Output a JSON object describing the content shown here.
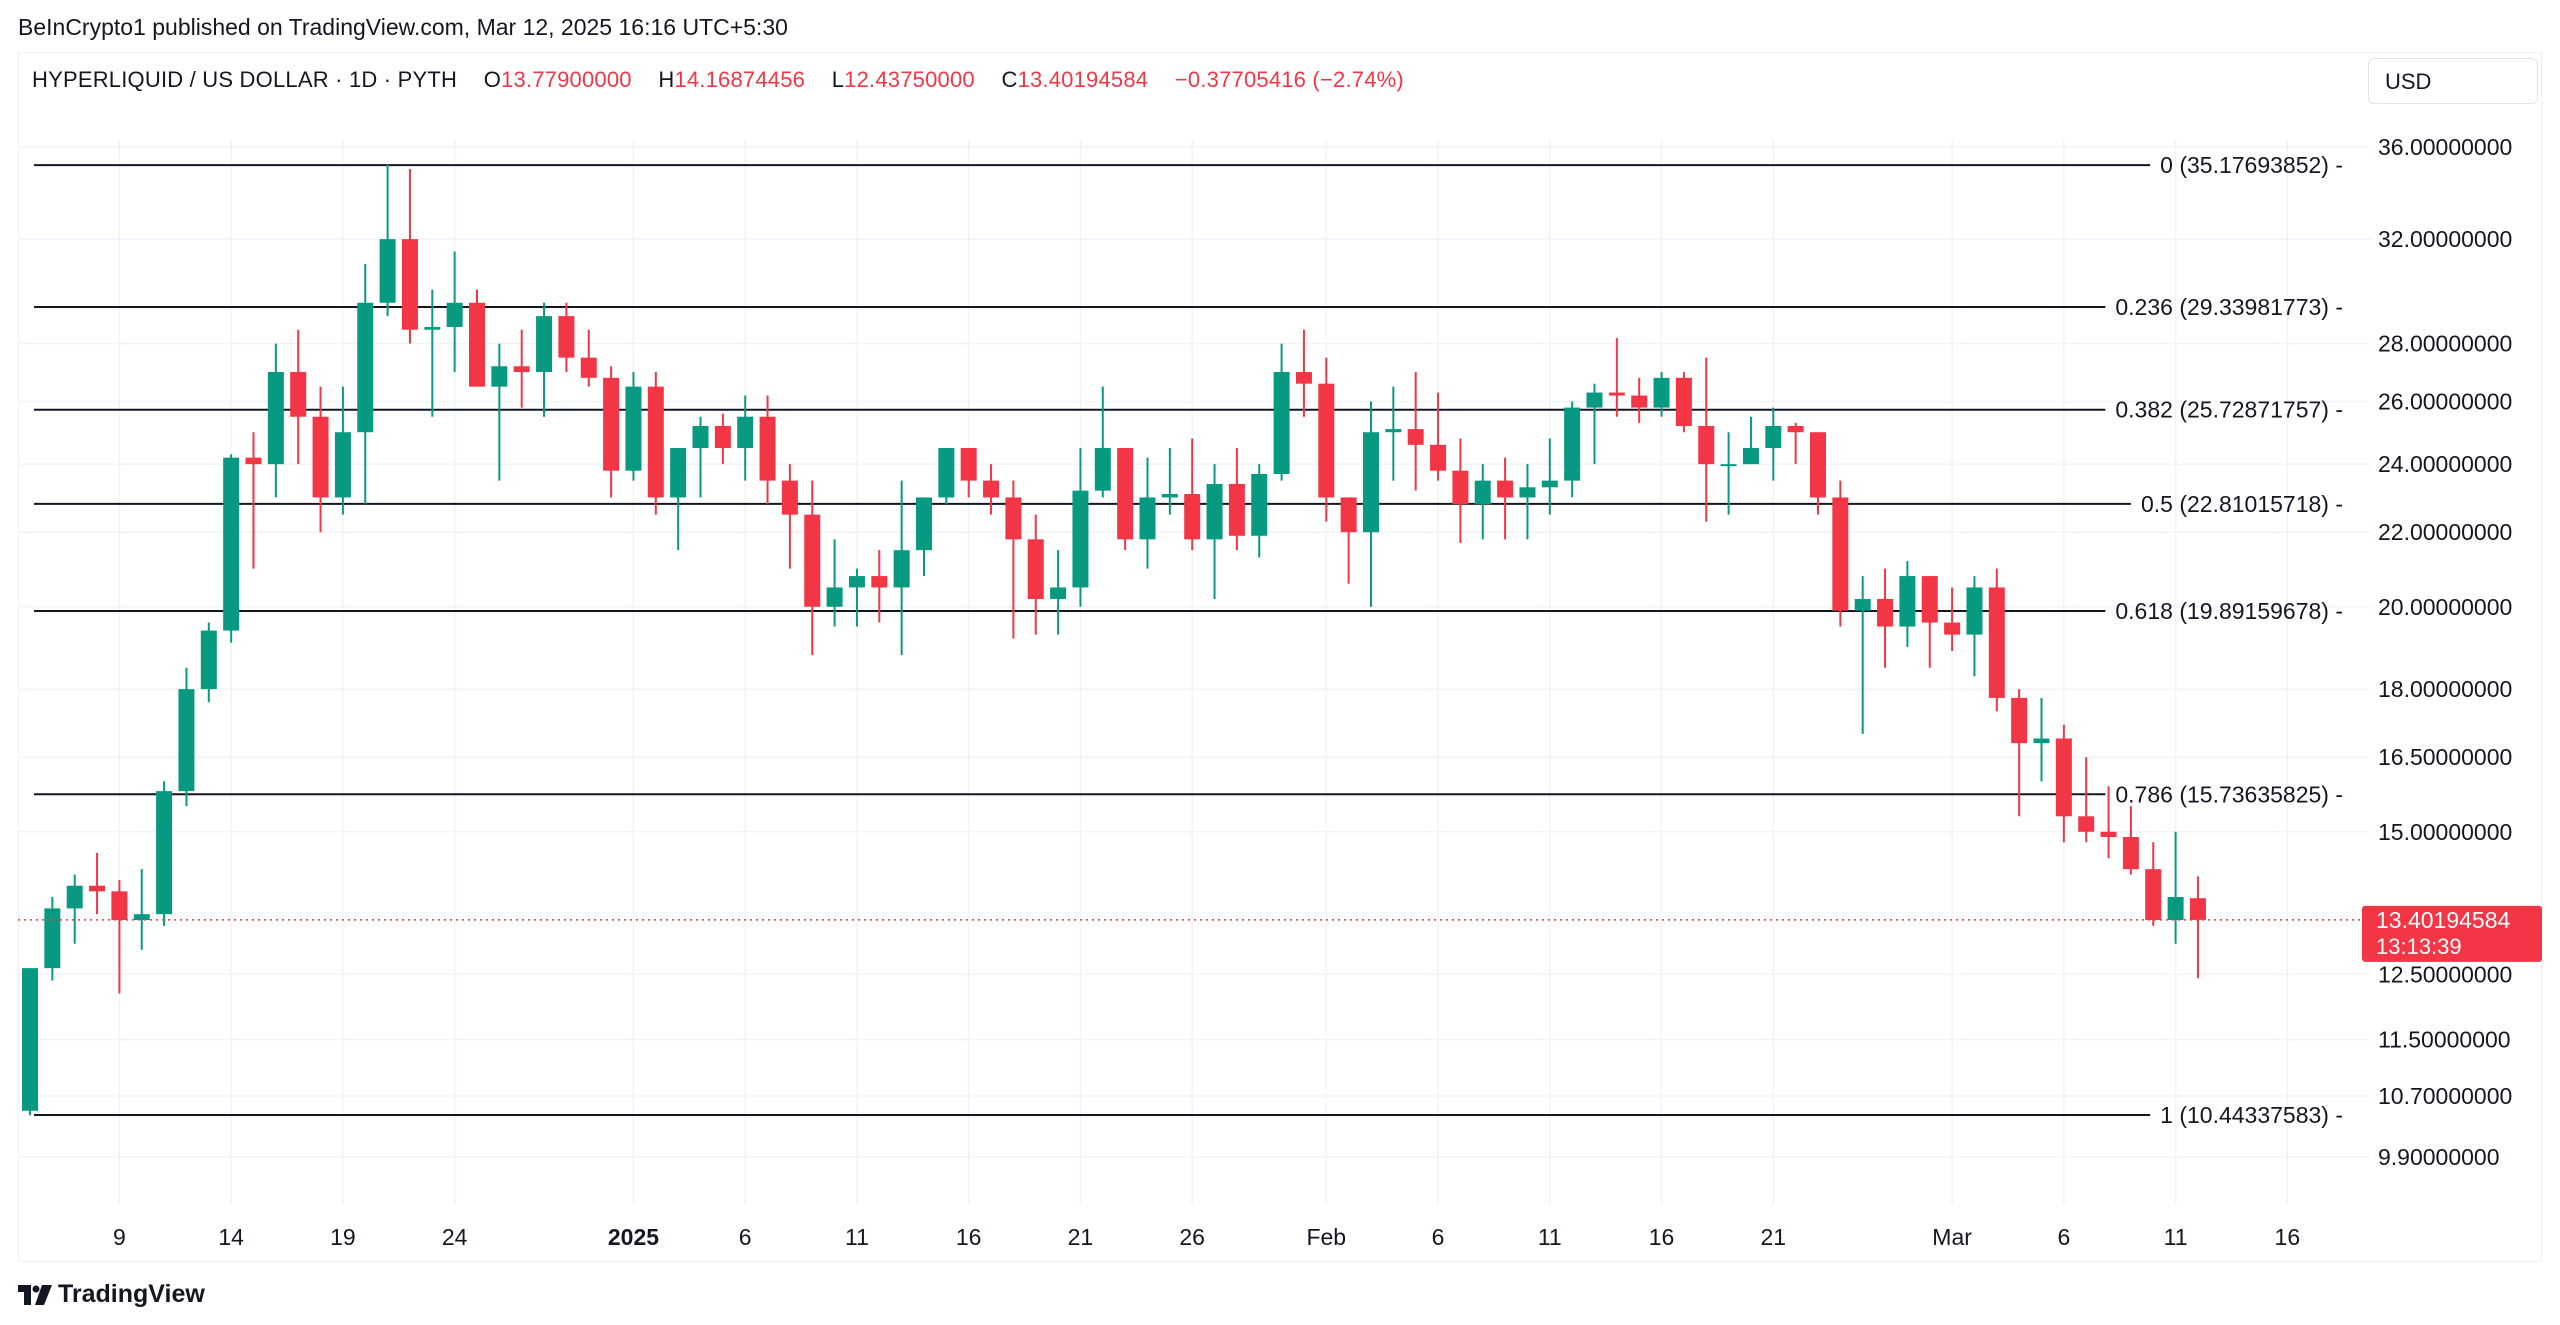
{
  "header": {
    "published": "BeInCrypto1 published on TradingView.com, Mar 12, 2025 16:16 UTC+5:30"
  },
  "legend": {
    "symbol": "HYPERLIQUID / US DOLLAR · 1D · PYTH",
    "o_label": "O",
    "o_value": "13.77900000",
    "h_label": "H",
    "h_value": "14.16874456",
    "l_label": "L",
    "l_value": "12.43750000",
    "c_label": "C",
    "c_value": "13.40194584",
    "change": "−0.37705416 (−2.74%)"
  },
  "currency_label": "USD",
  "footer": {
    "brand": "TradingView"
  },
  "colors": {
    "up": "#089981",
    "down": "#f23645",
    "grid": "#f0f3fa",
    "fib": "#131722",
    "text": "#131722"
  },
  "chart_data": {
    "type": "candlestick",
    "title": "HYPERLIQUID / US DOLLAR · 1D · PYTH",
    "yscale": "log",
    "ylim": [
      9.2,
      36.5
    ],
    "y_ticks": [
      {
        "value": 36,
        "label": "36.00000000"
      },
      {
        "value": 32,
        "label": "32.00000000"
      },
      {
        "value": 28,
        "label": "28.00000000"
      },
      {
        "value": 26,
        "label": "26.00000000"
      },
      {
        "value": 24,
        "label": "24.00000000"
      },
      {
        "value": 22,
        "label": "22.00000000"
      },
      {
        "value": 20,
        "label": "20.00000000"
      },
      {
        "value": 18,
        "label": "18.00000000"
      },
      {
        "value": 16.5,
        "label": "16.50000000"
      },
      {
        "value": 15,
        "label": "15.00000000"
      },
      {
        "value": 12.5,
        "label": "12.50000000"
      },
      {
        "value": 11.5,
        "label": "11.50000000"
      },
      {
        "value": 10.7,
        "label": "10.70000000"
      },
      {
        "value": 9.9,
        "label": "9.90000000"
      }
    ],
    "x_ticks": [
      {
        "index": 4,
        "label": "9",
        "bold": false
      },
      {
        "index": 9,
        "label": "14",
        "bold": false
      },
      {
        "index": 14,
        "label": "19",
        "bold": false
      },
      {
        "index": 19,
        "label": "24",
        "bold": false
      },
      {
        "index": 27,
        "label": "2025",
        "bold": true
      },
      {
        "index": 32,
        "label": "6",
        "bold": false
      },
      {
        "index": 37,
        "label": "11",
        "bold": false
      },
      {
        "index": 42,
        "label": "16",
        "bold": false
      },
      {
        "index": 47,
        "label": "21",
        "bold": false
      },
      {
        "index": 52,
        "label": "26",
        "bold": false
      },
      {
        "index": 58,
        "label": "Feb",
        "bold": false
      },
      {
        "index": 63,
        "label": "6",
        "bold": false
      },
      {
        "index": 68,
        "label": "11",
        "bold": false
      },
      {
        "index": 73,
        "label": "16",
        "bold": false
      },
      {
        "index": 78,
        "label": "21",
        "bold": false
      },
      {
        "index": 86,
        "label": "Mar",
        "bold": false
      },
      {
        "index": 91,
        "label": "6",
        "bold": false
      },
      {
        "index": 96,
        "label": "11",
        "bold": false
      },
      {
        "index": 101,
        "label": "16",
        "bold": false
      }
    ],
    "fib_levels": [
      {
        "ratio": "0",
        "value": 35.17693852,
        "label": "0 (35.17693852)"
      },
      {
        "ratio": "0.236",
        "value": 29.33981773,
        "label": "0.236 (29.33981773)"
      },
      {
        "ratio": "0.382",
        "value": 25.72871757,
        "label": "0.382 (25.72871757)"
      },
      {
        "ratio": "0.5",
        "value": 22.81015718,
        "label": "0.5 (22.81015718)"
      },
      {
        "ratio": "0.618",
        "value": 19.89159678,
        "label": "0.618 (19.89159678)"
      },
      {
        "ratio": "0.786",
        "value": 15.73635825,
        "label": "0.786 (15.73635825)"
      },
      {
        "ratio": "1",
        "value": 10.44337583,
        "label": "1 (10.44337583)"
      }
    ],
    "last_price": {
      "value": 13.40194584,
      "label": "13.40194584",
      "countdown": "13:13:39"
    },
    "first_index": 0,
    "candles": [
      [
        10.5,
        12.6,
        10.44,
        12.6
      ],
      [
        12.6,
        13.8,
        12.4,
        13.6
      ],
      [
        13.6,
        14.2,
        13.0,
        14.0
      ],
      [
        14.0,
        14.6,
        13.5,
        13.9
      ],
      [
        13.9,
        14.1,
        12.2,
        13.4
      ],
      [
        13.4,
        14.3,
        12.9,
        13.5
      ],
      [
        13.5,
        16.0,
        13.3,
        15.8
      ],
      [
        15.8,
        18.5,
        15.5,
        18.0
      ],
      [
        18.0,
        19.6,
        17.7,
        19.4
      ],
      [
        19.4,
        24.3,
        19.1,
        24.2
      ],
      [
        24.2,
        25.0,
        21.0,
        24.0
      ],
      [
        24.0,
        28.0,
        23.0,
        27.0
      ],
      [
        27.0,
        28.5,
        24.0,
        25.5
      ],
      [
        25.5,
        26.5,
        22.0,
        23.0
      ],
      [
        23.0,
        26.5,
        22.5,
        25.0
      ],
      [
        25.0,
        31.0,
        22.8,
        29.5
      ],
      [
        29.5,
        35.2,
        29.0,
        32.0
      ],
      [
        32.0,
        35.0,
        28.0,
        28.5
      ],
      [
        28.5,
        30.0,
        25.5,
        28.6
      ],
      [
        28.6,
        31.5,
        27.0,
        29.5
      ],
      [
        29.5,
        30.0,
        26.5,
        26.5
      ],
      [
        26.5,
        28.0,
        23.5,
        27.2
      ],
      [
        27.2,
        28.5,
        25.8,
        27.0
      ],
      [
        27.0,
        29.5,
        25.5,
        29.0
      ],
      [
        29.0,
        29.5,
        27.0,
        27.5
      ],
      [
        27.5,
        28.5,
        26.5,
        26.8
      ],
      [
        26.8,
        27.2,
        23.0,
        23.8
      ],
      [
        23.8,
        27.0,
        23.5,
        26.5
      ],
      [
        26.5,
        27.0,
        22.5,
        23.0
      ],
      [
        23.0,
        24.5,
        21.5,
        24.5
      ],
      [
        24.5,
        25.5,
        23.0,
        25.2
      ],
      [
        25.2,
        25.6,
        24.0,
        24.5
      ],
      [
        24.5,
        26.2,
        23.5,
        25.5
      ],
      [
        25.5,
        26.2,
        22.8,
        23.5
      ],
      [
        23.5,
        24.0,
        21.0,
        22.5
      ],
      [
        22.5,
        23.5,
        18.8,
        20.0
      ],
      [
        20.0,
        21.8,
        19.5,
        20.5
      ],
      [
        20.5,
        21.0,
        19.5,
        20.8
      ],
      [
        20.8,
        21.5,
        19.6,
        20.5
      ],
      [
        20.5,
        23.5,
        18.8,
        21.5
      ],
      [
        21.5,
        22.8,
        20.8,
        23.0
      ],
      [
        23.0,
        24.5,
        22.8,
        24.5
      ],
      [
        24.5,
        24.5,
        23.0,
        23.5
      ],
      [
        23.5,
        24.0,
        22.5,
        23.0
      ],
      [
        23.0,
        23.5,
        19.2,
        21.8
      ],
      [
        21.8,
        22.5,
        19.3,
        20.2
      ],
      [
        20.2,
        21.5,
        19.3,
        20.5
      ],
      [
        20.5,
        24.5,
        20.0,
        23.2
      ],
      [
        23.2,
        26.5,
        23.0,
        24.5
      ],
      [
        24.5,
        24.5,
        21.5,
        21.8
      ],
      [
        21.8,
        24.2,
        21.0,
        23.0
      ],
      [
        23.0,
        24.5,
        22.5,
        23.1
      ],
      [
        23.1,
        24.8,
        21.5,
        21.8
      ],
      [
        21.8,
        24.0,
        20.2,
        23.4
      ],
      [
        23.4,
        24.5,
        21.5,
        21.9
      ],
      [
        21.9,
        24.0,
        21.3,
        23.7
      ],
      [
        23.7,
        28.0,
        23.5,
        27.0
      ],
      [
        27.0,
        28.5,
        25.5,
        26.6
      ],
      [
        26.6,
        27.5,
        22.3,
        23.0
      ],
      [
        23.0,
        23.0,
        20.6,
        22.0
      ],
      [
        22.0,
        26.0,
        20.0,
        25.0
      ],
      [
        25.0,
        26.5,
        23.5,
        25.1
      ],
      [
        25.1,
        27.0,
        23.2,
        24.6
      ],
      [
        24.6,
        26.3,
        23.5,
        23.8
      ],
      [
        23.8,
        24.8,
        21.7,
        22.8
      ],
      [
        22.8,
        24.0,
        21.8,
        23.5
      ],
      [
        23.5,
        24.2,
        21.8,
        23.0
      ],
      [
        23.0,
        24.0,
        21.8,
        23.3
      ],
      [
        23.3,
        24.8,
        22.5,
        23.5
      ],
      [
        23.5,
        26.0,
        23.0,
        25.8
      ],
      [
        25.8,
        26.6,
        24.0,
        26.3
      ],
      [
        26.3,
        28.2,
        25.5,
        26.2
      ],
      [
        26.2,
        26.8,
        25.3,
        25.8
      ],
      [
        25.8,
        27.0,
        25.5,
        26.8
      ],
      [
        26.8,
        27.0,
        25.0,
        25.2
      ],
      [
        25.2,
        27.5,
        22.3,
        24.0
      ],
      [
        24.0,
        25.0,
        22.5,
        24.0
      ],
      [
        24.0,
        25.5,
        24.0,
        24.5
      ],
      [
        24.5,
        25.8,
        23.5,
        25.2
      ],
      [
        25.2,
        25.3,
        24.0,
        25.0
      ],
      [
        25.0,
        25.0,
        22.5,
        23.0
      ],
      [
        23.0,
        23.5,
        19.5,
        19.9
      ],
      [
        19.9,
        20.8,
        17.0,
        20.2
      ],
      [
        20.2,
        21.0,
        18.5,
        19.5
      ],
      [
        19.5,
        21.2,
        19.0,
        20.8
      ],
      [
        20.8,
        20.8,
        18.5,
        19.6
      ],
      [
        19.6,
        20.5,
        18.9,
        19.3
      ],
      [
        19.3,
        20.8,
        18.3,
        20.5
      ],
      [
        20.5,
        21.0,
        17.5,
        17.8
      ],
      [
        17.8,
        18.0,
        15.3,
        16.8
      ],
      [
        16.8,
        17.8,
        16.0,
        16.9
      ],
      [
        16.9,
        17.2,
        14.8,
        15.3
      ],
      [
        15.3,
        16.5,
        14.8,
        15.0
      ],
      [
        15.0,
        15.9,
        14.5,
        14.9
      ],
      [
        14.9,
        15.5,
        14.2,
        14.3
      ],
      [
        14.3,
        14.8,
        13.3,
        13.4
      ],
      [
        13.4,
        15.0,
        13.0,
        13.8
      ],
      [
        13.779,
        14.16874456,
        12.4375,
        13.40194584
      ]
    ]
  }
}
